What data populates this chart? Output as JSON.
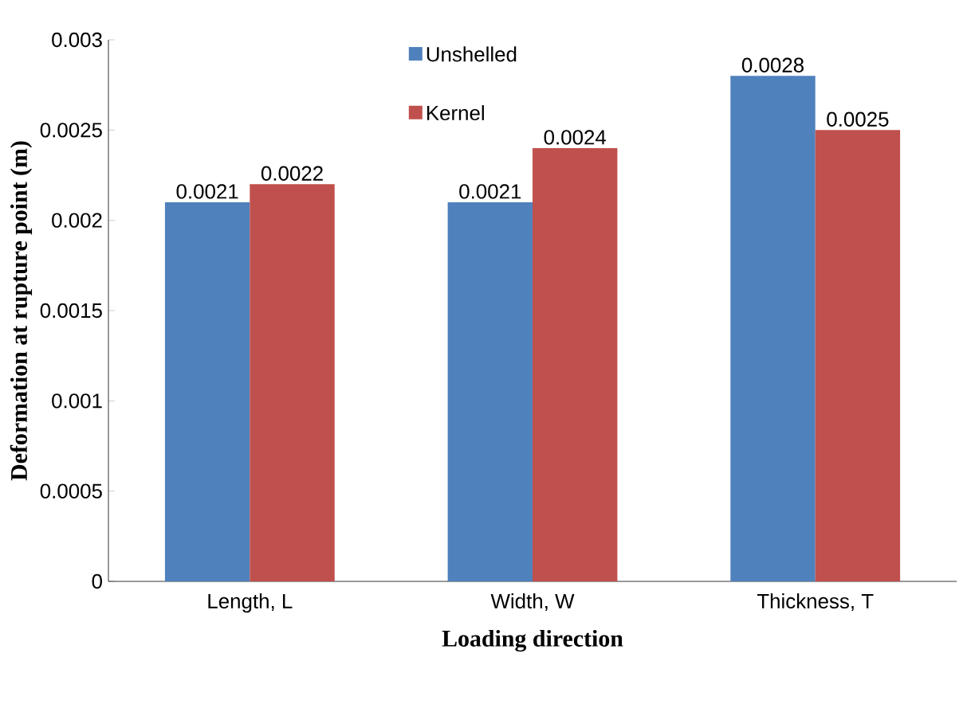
{
  "chart_data": {
    "type": "bar",
    "xlabel": "Loading direction",
    "ylabel": "Deformation at rupture point (m)",
    "categories": [
      "Length, L",
      "Width, W",
      "Thickness, T"
    ],
    "series": [
      {
        "name": "Unshelled",
        "color": "#4f81bd",
        "values": [
          0.0021,
          0.0021,
          0.0028
        ]
      },
      {
        "name": "Kernel",
        "color": "#c0504d",
        "values": [
          0.0022,
          0.0024,
          0.0025
        ]
      }
    ],
    "ylim": [
      0,
      0.003
    ],
    "yticks": [
      0,
      0.0005,
      0.001,
      0.0015,
      0.002,
      0.0025,
      0.003
    ],
    "data_labels": true,
    "legend": "top",
    "grid": false
  }
}
